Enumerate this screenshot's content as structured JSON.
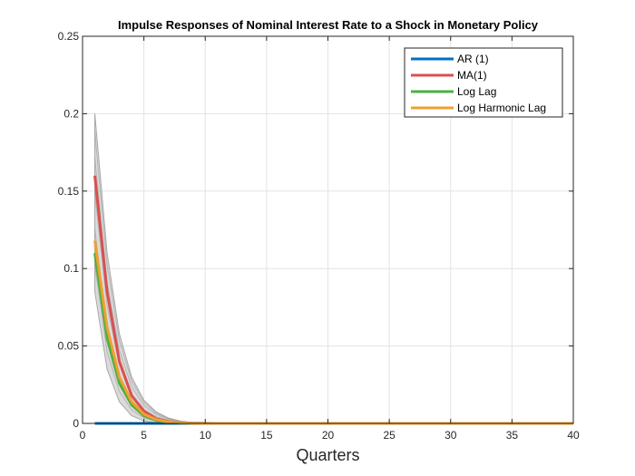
{
  "chart_data": {
    "type": "line",
    "title": "Impulse Responses of Nominal Interest Rate to a Shock in Monetary Policy",
    "xlabel": "Quarters",
    "ylabel": "",
    "xlim": [
      0,
      40
    ],
    "ylim": [
      0,
      0.25
    ],
    "xticks": [
      0,
      5,
      10,
      15,
      20,
      25,
      30,
      35,
      40
    ],
    "yticks": [
      0,
      0.05,
      0.1,
      0.15,
      0.2,
      0.25
    ],
    "xtick_labels": [
      "0",
      "5",
      "10",
      "15",
      "20",
      "25",
      "30",
      "35",
      "40"
    ],
    "ytick_labels": [
      "0",
      "0.05",
      "0.1",
      "0.15",
      "0.2",
      "0.25"
    ],
    "grid": true,
    "legend_position": "top-right",
    "x": [
      1,
      2,
      3,
      4,
      5,
      6,
      7,
      8,
      9,
      10,
      11,
      12,
      13,
      14,
      15,
      16,
      17,
      18,
      19,
      20,
      21,
      22,
      23,
      24,
      25,
      26,
      27,
      28,
      29,
      30,
      31,
      32,
      33,
      34,
      35,
      36,
      37,
      38,
      39,
      40
    ],
    "series": [
      {
        "name": "AR (1)",
        "color": "#0072BD",
        "values": [
          0,
          0,
          0,
          0,
          0,
          0,
          0,
          0,
          0,
          0,
          0,
          0,
          0,
          0,
          0,
          0,
          0,
          0,
          0,
          0,
          0,
          0,
          0,
          0,
          0,
          0,
          0,
          0,
          0,
          0,
          0,
          0,
          0,
          0,
          0,
          0,
          0,
          0,
          0,
          0
        ]
      },
      {
        "name": "MA(1)",
        "color": "#D95050",
        "values": [
          0.16,
          0.085,
          0.04,
          0.018,
          0.008,
          0.003,
          0.0012,
          0.0005,
          0.0002,
          0.0001,
          0,
          0,
          0,
          0,
          0,
          0,
          0,
          0,
          0,
          0,
          0,
          0,
          0,
          0,
          0,
          0,
          0,
          0,
          0,
          0,
          0,
          0,
          0,
          0,
          0,
          0,
          0,
          0,
          0,
          0
        ]
      },
      {
        "name": "Log Lag",
        "color": "#4DB040",
        "values": [
          0.11,
          0.055,
          0.026,
          0.012,
          0.005,
          0.002,
          0.0008,
          0.0003,
          0.0001,
          0,
          0,
          0,
          0,
          0,
          0,
          0,
          0,
          0,
          0,
          0,
          0,
          0,
          0,
          0,
          0,
          0,
          0,
          0,
          0,
          0,
          0,
          0,
          0,
          0,
          0,
          0,
          0,
          0,
          0,
          0
        ]
      },
      {
        "name": "Log Harmonic Lag",
        "color": "#F0A030",
        "values": [
          0.118,
          0.062,
          0.03,
          0.014,
          0.006,
          0.0025,
          0.001,
          0.0004,
          0.00015,
          0,
          0,
          0,
          0,
          0,
          0,
          0,
          0,
          0,
          0,
          0,
          0,
          0,
          0,
          0,
          0,
          0,
          0,
          0,
          0,
          0,
          0,
          0,
          0,
          0,
          0,
          0,
          0,
          0,
          0,
          0
        ]
      }
    ],
    "confidence_bands": {
      "color": "#BEBEBE",
      "x": [
        1,
        2,
        3,
        4,
        5,
        6,
        7,
        8,
        9,
        10
      ],
      "lower": [
        0.085,
        0.035,
        0.014,
        0.005,
        0.0015,
        0.0005,
        0.0001,
        0,
        0,
        0
      ],
      "upper": [
        0.2,
        0.11,
        0.058,
        0.03,
        0.015,
        0.0075,
        0.0035,
        0.0015,
        0.0006,
        0.0002
      ]
    }
  }
}
